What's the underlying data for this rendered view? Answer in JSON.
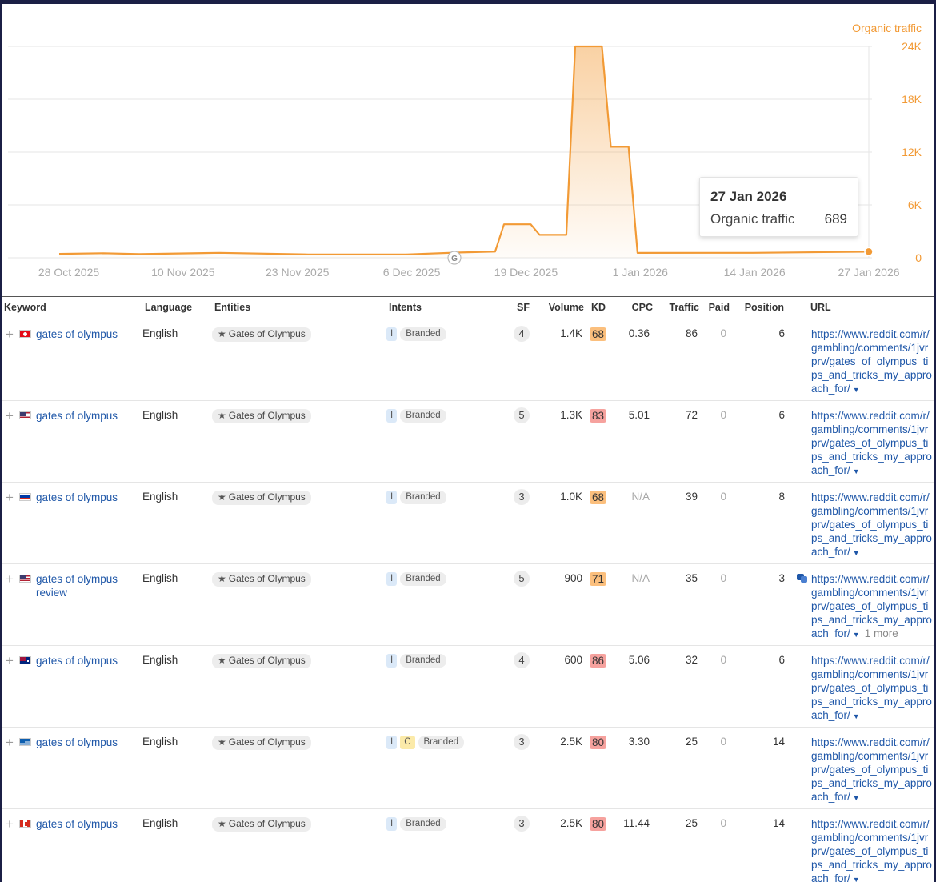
{
  "chart_data": {
    "type": "area",
    "title": "",
    "xlabel": "",
    "ylabel": "",
    "series_label": "Organic traffic",
    "color": "#f29a35",
    "x_tick_labels": [
      "28 Oct 2025",
      "10 Nov 2025",
      "23 Nov 2025",
      "6 Dec 2025",
      "19 Dec 2025",
      "1 Jan 2026",
      "14 Jan 2026",
      "27 Jan 2026"
    ],
    "y_tick_labels": [
      "24K",
      "18K",
      "12K",
      "6K",
      "0"
    ],
    "y_ticks": [
      24000,
      18000,
      12000,
      6000,
      0
    ],
    "ylim": [
      0,
      24000
    ],
    "x_start": "2025-10-28",
    "x_end": "2026-01-27",
    "series": [
      {
        "name": "Organic traffic",
        "points": [
          {
            "date": "2025-10-28",
            "value": 450
          },
          {
            "date": "2025-11-02",
            "value": 520
          },
          {
            "date": "2025-11-06",
            "value": 420
          },
          {
            "date": "2025-11-15",
            "value": 560
          },
          {
            "date": "2025-11-25",
            "value": 380
          },
          {
            "date": "2025-12-06",
            "value": 380
          },
          {
            "date": "2025-12-12",
            "value": 600
          },
          {
            "date": "2025-12-16",
            "value": 700
          },
          {
            "date": "2025-12-17",
            "value": 3800
          },
          {
            "date": "2025-12-20",
            "value": 3800
          },
          {
            "date": "2025-12-21",
            "value": 2600
          },
          {
            "date": "2025-12-24",
            "value": 2600
          },
          {
            "date": "2025-12-25",
            "value": 24000
          },
          {
            "date": "2025-12-28",
            "value": 24000
          },
          {
            "date": "2025-12-29",
            "value": 12600
          },
          {
            "date": "2025-12-31",
            "value": 12600
          },
          {
            "date": "2026-01-01",
            "value": 550
          },
          {
            "date": "2026-01-14",
            "value": 560
          },
          {
            "date": "2026-01-27",
            "value": 689
          }
        ]
      }
    ],
    "annotation_marker": "G",
    "tooltip": {
      "date": "27 Jan 2026",
      "label": "Organic traffic",
      "value": "689"
    }
  },
  "table": {
    "headers": {
      "keyword": "Keyword",
      "language": "Language",
      "entities": "Entities",
      "intents": "Intents",
      "sf": "SF",
      "volume": "Volume",
      "kd": "KD",
      "cpc": "CPC",
      "traffic": "Traffic",
      "paid": "Paid",
      "position": "Position",
      "url": "URL"
    },
    "rows": [
      {
        "flag": "tr",
        "keyword": "gates of olympus",
        "language": "English",
        "entity": "Gates of Olympus",
        "intent_i": "I",
        "intent_c": "",
        "intent_label": "Branded",
        "sf": "4",
        "volume": "1.4K",
        "kd": "68",
        "kd_color": "orange",
        "cpc": "0.36",
        "traffic": "86",
        "paid": "0",
        "position": "6",
        "url": "https://www.reddit.com/r/gambling/comments/1jvrprv/gates_of_olympus_tips_and_tricks_my_approach_for/",
        "url_more": "",
        "serp_icon": false
      },
      {
        "flag": "us",
        "keyword": "gates of olympus",
        "language": "English",
        "entity": "Gates of Olympus",
        "intent_i": "I",
        "intent_c": "",
        "intent_label": "Branded",
        "sf": "5",
        "volume": "1.3K",
        "kd": "83",
        "kd_color": "red",
        "cpc": "5.01",
        "traffic": "72",
        "paid": "0",
        "position": "6",
        "url": "https://www.reddit.com/r/gambling/comments/1jvrprv/gates_of_olympus_tips_and_tricks_my_approach_for/",
        "url_more": "",
        "serp_icon": false
      },
      {
        "flag": "ru",
        "keyword": "gates of olympus",
        "language": "English",
        "entity": "Gates of Olympus",
        "intent_i": "I",
        "intent_c": "",
        "intent_label": "Branded",
        "sf": "3",
        "volume": "1.0K",
        "kd": "68",
        "kd_color": "orange",
        "cpc": "N/A",
        "traffic": "39",
        "paid": "0",
        "position": "8",
        "url": "https://www.reddit.com/r/gambling/comments/1jvrprv/gates_of_olympus_tips_and_tricks_my_approach_for/",
        "url_more": "",
        "serp_icon": false
      },
      {
        "flag": "us",
        "keyword": "gates of olympus review",
        "language": "English",
        "entity": "Gates of Olympus",
        "intent_i": "I",
        "intent_c": "",
        "intent_label": "Branded",
        "sf": "5",
        "volume": "900",
        "kd": "71",
        "kd_color": "orange",
        "cpc": "N/A",
        "traffic": "35",
        "paid": "0",
        "position": "3",
        "url": "https://www.reddit.com/r/gambling/comments/1jvrprv/gates_of_olympus_tips_and_tricks_my_approach_for/",
        "url_more": "1 more",
        "serp_icon": true
      },
      {
        "flag": "au",
        "keyword": "gates of olympus",
        "language": "English",
        "entity": "Gates of Olympus",
        "intent_i": "I",
        "intent_c": "",
        "intent_label": "Branded",
        "sf": "4",
        "volume": "600",
        "kd": "86",
        "kd_color": "red",
        "cpc": "5.06",
        "traffic": "32",
        "paid": "0",
        "position": "6",
        "url": "https://www.reddit.com/r/gambling/comments/1jvrprv/gates_of_olympus_tips_and_tricks_my_approach_for/",
        "url_more": "",
        "serp_icon": false
      },
      {
        "flag": "gr",
        "keyword": "gates of olympus",
        "language": "English",
        "entity": "Gates of Olympus",
        "intent_i": "I",
        "intent_c": "C",
        "intent_label": "Branded",
        "sf": "3",
        "volume": "2.5K",
        "kd": "80",
        "kd_color": "red",
        "cpc": "3.30",
        "traffic": "25",
        "paid": "0",
        "position": "14",
        "url": "https://www.reddit.com/r/gambling/comments/1jvrprv/gates_of_olympus_tips_and_tricks_my_approach_for/",
        "url_more": "",
        "serp_icon": false
      },
      {
        "flag": "ca",
        "keyword": "gates of olympus",
        "language": "English",
        "entity": "Gates of Olympus",
        "intent_i": "I",
        "intent_c": "",
        "intent_label": "Branded",
        "sf": "3",
        "volume": "2.5K",
        "kd": "80",
        "kd_color": "red",
        "cpc": "11.44",
        "traffic": "25",
        "paid": "0",
        "position": "14",
        "url": "https://www.reddit.com/r/gambling/comments/1jvrprv/gates_of_olympus_tips_and_tricks_my_approach_for/",
        "url_more": "",
        "serp_icon": false
      }
    ]
  }
}
